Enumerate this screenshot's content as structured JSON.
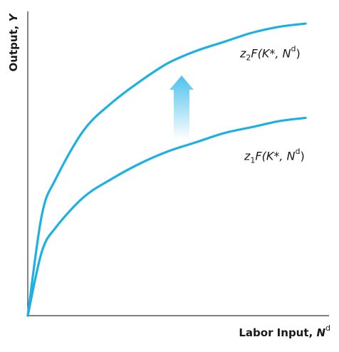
{
  "chart_data": {
    "type": "line",
    "xlabel": "Labor Input, N",
    "xlabel_var": "N",
    "xlabel_sup": "d",
    "ylabel": "Output, Y",
    "ylabel_var": "Y",
    "xlim": [
      0,
      100
    ],
    "ylim": [
      0,
      100
    ],
    "grid": false,
    "series": [
      {
        "name": "z2F(K*, Nd)",
        "label_parts": {
          "coef": "z",
          "sub": "2",
          "func": "F(K*, N",
          "sup": "d",
          "close": ")"
        },
        "color": "#1fb0e2",
        "x": [
          0,
          5,
          10,
          20,
          30,
          40,
          50,
          60,
          70,
          80,
          90,
          99
        ],
        "y": [
          0,
          33,
          45,
          61,
          70,
          77,
          83,
          87,
          90,
          93,
          95,
          96
        ]
      },
      {
        "name": "z1F(K*, Nd)",
        "label_parts": {
          "coef": "z",
          "sub": "1",
          "func": "F(K*, N",
          "sup": "d",
          "close": ")"
        },
        "color": "#1fb0e2",
        "x": [
          0,
          5,
          10,
          20,
          30,
          40,
          50,
          60,
          70,
          80,
          90,
          99
        ],
        "y": [
          0,
          21,
          29,
          39,
          45,
          50,
          54,
          57,
          60,
          62,
          64,
          65
        ]
      }
    ],
    "annotations": [
      {
        "type": "arrow",
        "direction": "up",
        "color": "#4cc1ec",
        "meaning": "shift"
      }
    ]
  }
}
